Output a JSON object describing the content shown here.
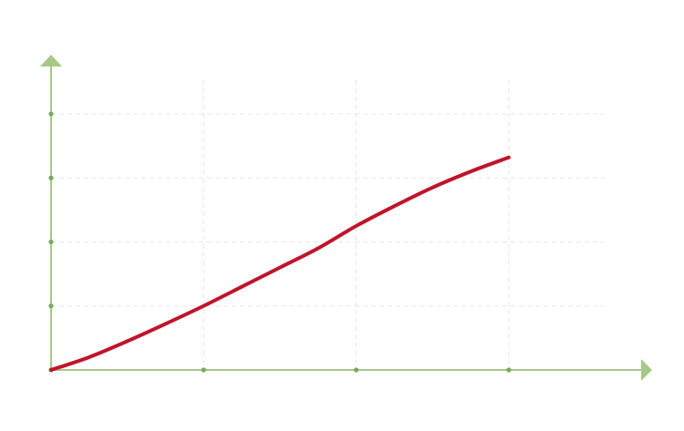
{
  "chart_data": {
    "type": "line",
    "title": "",
    "xlabel": "",
    "ylabel": "",
    "xlim": [
      0,
      3
    ],
    "ylim": [
      0,
      4
    ],
    "grid": true,
    "x_ticks": [
      1,
      2,
      3
    ],
    "y_ticks": [
      1,
      2,
      3,
      4
    ],
    "series": [
      {
        "x": [
          0,
          0.25,
          0.5,
          0.75,
          1.0,
          1.25,
          1.5,
          1.75,
          2.0,
          2.25,
          2.5,
          2.75,
          3.0
        ],
        "values": [
          0,
          0.2,
          0.45,
          0.72,
          1.0,
          1.3,
          1.6,
          1.9,
          2.25,
          2.56,
          2.85,
          3.1,
          3.32
        ]
      }
    ]
  },
  "colors": {
    "axis": "#a8c888",
    "grid": "#e6e6e6",
    "tick": "#7aa860",
    "line": "#c0142a"
  }
}
